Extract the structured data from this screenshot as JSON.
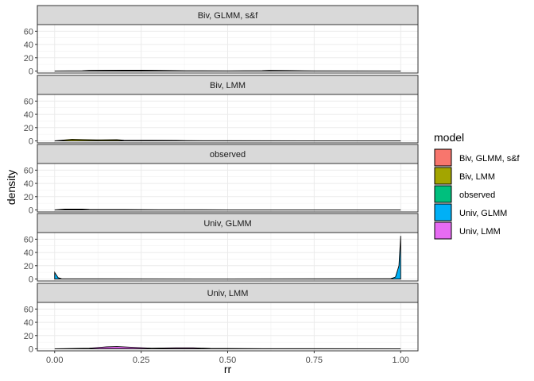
{
  "chart_data": {
    "type": "area",
    "xlabel": "rr",
    "ylabel": "density",
    "xlim": [
      -0.05,
      1.05
    ],
    "ylim": [
      -3,
      70
    ],
    "x_ticks": [
      0.0,
      0.25,
      0.5,
      0.75,
      1.0
    ],
    "x_tick_labels": [
      "0.00",
      "0.25",
      "0.50",
      "0.75",
      "1.00"
    ],
    "y_ticks": [
      0,
      20,
      40,
      60
    ],
    "y_tick_labels": [
      "0",
      "20",
      "40",
      "60"
    ],
    "grid": true,
    "legend_title": "model",
    "legend_position": "right",
    "facets": [
      {
        "name": "Biv, GLMM, s&f",
        "color": "#F8766D",
        "series": [
          [
            0.0,
            0.0
          ],
          [
            0.08,
            0.3
          ],
          [
            0.1,
            1.0
          ],
          [
            0.2,
            1.2
          ],
          [
            0.25,
            1.2
          ],
          [
            0.28,
            1.1
          ],
          [
            0.38,
            0.4
          ],
          [
            0.5,
            0.2
          ],
          [
            0.6,
            0.5
          ],
          [
            0.62,
            1.0
          ],
          [
            0.68,
            0.6
          ],
          [
            0.75,
            0.2
          ],
          [
            1.0,
            0.0
          ]
        ]
      },
      {
        "name": "Biv, LMM",
        "color": "#A3A500",
        "series": [
          [
            0.0,
            0.0
          ],
          [
            0.02,
            1.0
          ],
          [
            0.05,
            2.5
          ],
          [
            0.08,
            2.0
          ],
          [
            0.12,
            1.5
          ],
          [
            0.18,
            1.8
          ],
          [
            0.2,
            0.9
          ],
          [
            0.35,
            0.6
          ],
          [
            0.38,
            0.3
          ],
          [
            0.5,
            0.2
          ],
          [
            1.0,
            0.0
          ]
        ]
      },
      {
        "name": "observed",
        "color": "#00BF7D",
        "series": [
          [
            0.0,
            0.0
          ],
          [
            0.03,
            1.2
          ],
          [
            0.08,
            1.2
          ],
          [
            0.1,
            0.6
          ],
          [
            0.2,
            0.5
          ],
          [
            0.3,
            0.2
          ],
          [
            0.5,
            0.1
          ],
          [
            1.0,
            0.0
          ]
        ]
      },
      {
        "name": "Univ, GLMM",
        "color": "#00B0F6",
        "series": [
          [
            0.0,
            10.0
          ],
          [
            0.005,
            6.0
          ],
          [
            0.01,
            2.0
          ],
          [
            0.02,
            0.3
          ],
          [
            0.5,
            0.0
          ],
          [
            0.97,
            0.3
          ],
          [
            0.985,
            3.0
          ],
          [
            0.995,
            20.0
          ],
          [
            1.0,
            65.0
          ]
        ]
      },
      {
        "name": "Univ, LMM",
        "color": "#E76BF3",
        "series": [
          [
            0.0,
            0.0
          ],
          [
            0.1,
            1.0
          ],
          [
            0.15,
            3.0
          ],
          [
            0.18,
            3.5
          ],
          [
            0.22,
            2.5
          ],
          [
            0.28,
            1.0
          ],
          [
            0.35,
            1.5
          ],
          [
            0.4,
            1.5
          ],
          [
            0.45,
            0.6
          ],
          [
            0.6,
            0.2
          ],
          [
            1.0,
            0.0
          ]
        ]
      }
    ]
  }
}
